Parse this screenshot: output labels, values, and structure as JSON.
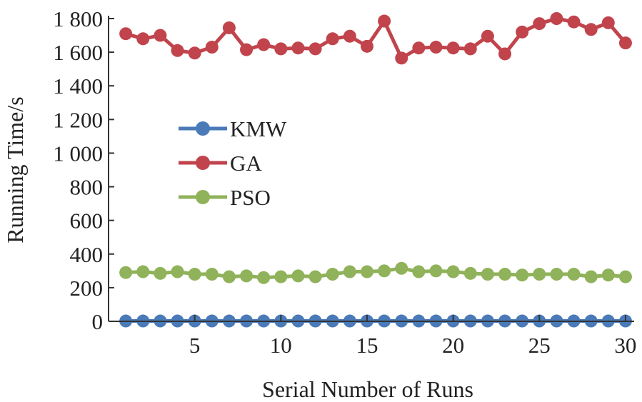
{
  "chart_data": {
    "type": "line",
    "title": "",
    "xlabel": "Serial Number of Runs",
    "ylabel": "Running Time/s",
    "xlim": [
      0,
      30.5
    ],
    "ylim": [
      0,
      1800
    ],
    "x_ticks": [
      5,
      10,
      15,
      20,
      25,
      30
    ],
    "x_tick_labels": [
      "5",
      "10",
      "15",
      "20",
      "25",
      "30"
    ],
    "y_ticks": [
      0,
      200,
      400,
      600,
      800,
      1000,
      1200,
      1400,
      1600,
      1800
    ],
    "y_tick_labels": [
      "0",
      "200",
      "400",
      "600",
      "800",
      "1 000",
      "1 200",
      "1 400",
      "1 600",
      "1 800"
    ],
    "grid": false,
    "legend_position": "center-left",
    "x": [
      1,
      2,
      3,
      4,
      5,
      6,
      7,
      8,
      9,
      10,
      11,
      12,
      13,
      14,
      15,
      16,
      17,
      18,
      19,
      20,
      21,
      22,
      23,
      24,
      25,
      26,
      27,
      28,
      29,
      30
    ],
    "series": [
      {
        "name": "KMW",
        "color": "#4a7ab8",
        "values": [
          2,
          2,
          2,
          2,
          2,
          2,
          2,
          2,
          2,
          2,
          2,
          2,
          2,
          2,
          2,
          2,
          2,
          2,
          2,
          2,
          2,
          2,
          2,
          2,
          2,
          2,
          2,
          2,
          2,
          2
        ]
      },
      {
        "name": "GA",
        "color": "#c1444c",
        "values": [
          1710,
          1680,
          1700,
          1610,
          1595,
          1630,
          1745,
          1615,
          1645,
          1620,
          1625,
          1620,
          1680,
          1695,
          1635,
          1785,
          1565,
          1625,
          1630,
          1625,
          1620,
          1695,
          1590,
          1720,
          1770,
          1800,
          1780,
          1735,
          1775,
          1655
        ]
      },
      {
        "name": "PSO",
        "color": "#8fb25a",
        "values": [
          290,
          295,
          285,
          295,
          280,
          280,
          265,
          270,
          260,
          265,
          270,
          265,
          280,
          295,
          295,
          300,
          315,
          295,
          300,
          295,
          285,
          280,
          280,
          275,
          280,
          280,
          280,
          265,
          275,
          265
        ]
      }
    ]
  }
}
